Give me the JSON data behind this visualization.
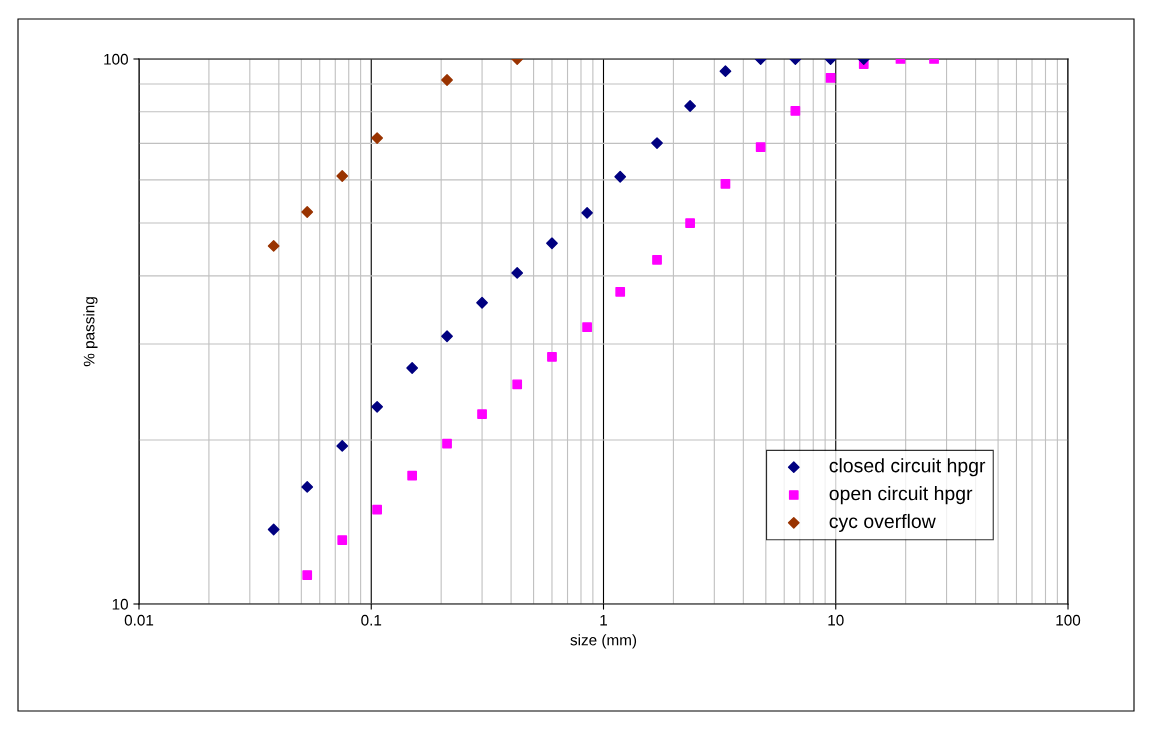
{
  "chart_data": {
    "type": "scatter",
    "xlabel": "size (mm)",
    "ylabel": "% passing",
    "log": "xy",
    "xlim": [
      0.01,
      100
    ],
    "ylim": [
      10,
      100
    ],
    "xticks": [
      0.01,
      0.1,
      1,
      10,
      100
    ],
    "yticks": [
      10,
      100
    ],
    "grid": true,
    "legend": "bottom right",
    "series": [
      {
        "name": "closed circuit hpgr",
        "color": "#000080",
        "marker": "diamond",
        "x": [
          0.038,
          0.053,
          0.075,
          0.106,
          0.15,
          0.212,
          0.3,
          0.425,
          0.6,
          0.85,
          1.18,
          1.7,
          2.36,
          3.35,
          4.75,
          6.7,
          9.5,
          13.2
        ],
        "values": [
          13.7,
          16.4,
          19.5,
          23.0,
          27.1,
          31.0,
          35.7,
          40.5,
          45.9,
          52.2,
          60.8,
          70.1,
          82.0,
          95.0,
          100,
          100,
          100,
          100
        ]
      },
      {
        "name": "open circuit hpgr",
        "color": "#ff00ff",
        "marker": "square",
        "x": [
          0.053,
          0.075,
          0.106,
          0.15,
          0.212,
          0.3,
          0.425,
          0.6,
          0.85,
          1.18,
          1.7,
          2.36,
          3.35,
          4.75,
          6.7,
          9.5,
          13.2,
          19,
          26.5
        ],
        "values": [
          11.3,
          13.1,
          14.9,
          17.2,
          19.7,
          22.3,
          25.3,
          28.4,
          32.2,
          37.4,
          42.8,
          50.0,
          59.0,
          68.9,
          80.3,
          92.3,
          97.9,
          100,
          100
        ]
      },
      {
        "name": "cyc overflow",
        "color": "#993300",
        "marker": "diamond",
        "x": [
          0.038,
          0.053,
          0.075,
          0.106,
          0.212,
          0.425
        ],
        "values": [
          45.4,
          52.4,
          61.0,
          71.6,
          91.5,
          100
        ]
      }
    ]
  }
}
